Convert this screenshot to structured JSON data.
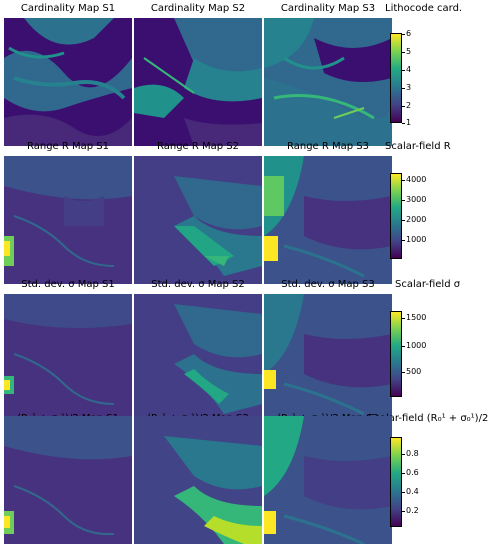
{
  "rows": [
    {
      "titles": [
        "Cardinality Map S1",
        "Cardinality Map S2",
        "Cardinality Map S3"
      ],
      "colorbar_title": "Lithocode card.",
      "ticks": [
        "6",
        "5",
        "4",
        "3",
        "2",
        "1"
      ]
    },
    {
      "titles": [
        "Range R Map S1",
        "Range R Map S2",
        "Range R Map S3"
      ],
      "colorbar_title": "Scalar-field R",
      "ticks": [
        "4000",
        "3000",
        "2000",
        "1000"
      ]
    },
    {
      "titles": [
        "Std. dev. σ Map S1",
        "Std. dev. σ Map S2",
        "Std. dev. σ Map S3"
      ],
      "colorbar_title": "Scalar-field σ",
      "ticks": [
        "1500",
        "1000",
        "500"
      ]
    },
    {
      "titles": [
        "(R₀¹ + σ₀¹)/2 Map S1",
        "(R₀¹ + σ₀¹)/2 Map S2",
        "(R₀¹ + σ₀¹)/2 Map S3"
      ],
      "colorbar_title": "Scalar-field (R₀¹ + σ₀¹)/2",
      "ticks": [
        "0.8",
        "0.6",
        "0.4",
        "0.2"
      ]
    }
  ],
  "chart_data": [
    {
      "type": "heatmap",
      "title": "Cardinality Map S1",
      "colorbar": "Lithocode card.",
      "clim": [
        1,
        6
      ],
      "colormap": "viridis"
    },
    {
      "type": "heatmap",
      "title": "Cardinality Map S2",
      "colorbar": "Lithocode card.",
      "clim": [
        1,
        6
      ],
      "colormap": "viridis"
    },
    {
      "type": "heatmap",
      "title": "Cardinality Map S3",
      "colorbar": "Lithocode card.",
      "clim": [
        1,
        6
      ],
      "colormap": "viridis"
    },
    {
      "type": "heatmap",
      "title": "Range R Map S1",
      "colorbar": "Scalar-field R",
      "clim": [
        0,
        4300
      ],
      "colormap": "viridis"
    },
    {
      "type": "heatmap",
      "title": "Range R Map S2",
      "colorbar": "Scalar-field R",
      "clim": [
        0,
        4300
      ],
      "colormap": "viridis"
    },
    {
      "type": "heatmap",
      "title": "Range R Map S3",
      "colorbar": "Scalar-field R",
      "clim": [
        0,
        4300
      ],
      "colormap": "viridis"
    },
    {
      "type": "heatmap",
      "title": "Std. dev. σ Map S1",
      "colorbar": "Scalar-field σ",
      "clim": [
        0,
        1950
      ],
      "colormap": "viridis"
    },
    {
      "type": "heatmap",
      "title": "Std. dev. σ Map S2",
      "colorbar": "Scalar-field σ",
      "clim": [
        0,
        1950
      ],
      "colormap": "viridis"
    },
    {
      "type": "heatmap",
      "title": "Std. dev. σ Map S3",
      "colorbar": "Scalar-field σ",
      "clim": [
        0,
        1950
      ],
      "colormap": "viridis"
    },
    {
      "type": "heatmap",
      "title": "(R₀¹ + σ₀¹)/2 Map S1",
      "colorbar": "Scalar-field (R₀¹ + σ₀¹)/2",
      "clim": [
        0,
        1.0
      ],
      "colormap": "viridis"
    },
    {
      "type": "heatmap",
      "title": "(R₀¹ + σ₀¹)/2 Map S2",
      "colorbar": "Scalar-field (R₀¹ + σ₀¹)/2",
      "clim": [
        0,
        1.0
      ],
      "colormap": "viridis"
    },
    {
      "type": "heatmap",
      "title": "(R₀¹ + σ₀¹)/2 Map S3",
      "colorbar": "Scalar-field (R₀¹ + σ₀¹)/2",
      "clim": [
        0,
        1.0
      ],
      "colormap": "viridis"
    }
  ],
  "colors": {
    "viridis_dark": "#440154",
    "viridis_deep": "#3b0f70",
    "viridis_blue": "#31688e",
    "viridis_teal": "#21918c",
    "viridis_green": "#35b779",
    "viridis_yellow": "#fde725"
  }
}
